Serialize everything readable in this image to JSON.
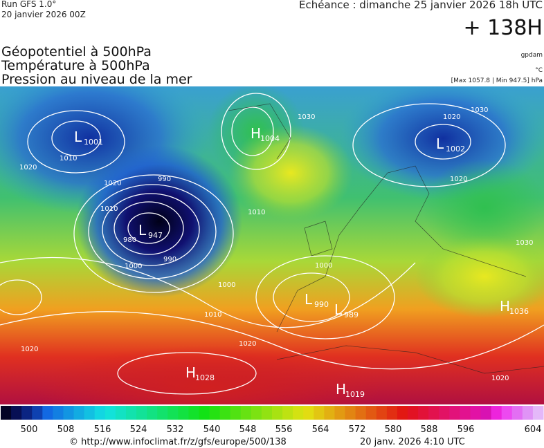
{
  "header": {
    "run": "Run GFS 1.0°",
    "run_date": "20 janvier 2026 00Z",
    "echeance": "Echéance : dimanche 25 janvier 2026 18h UTC",
    "lead": "+ 138H",
    "fields": [
      "Géopotentiel à 500hPa",
      "Température à 500hPa",
      "Pression au niveau de la mer"
    ],
    "unit_geo": "gpdam",
    "unit_temp": "°C",
    "pressure_range": "[Max 1057.8 | Min 947.5] hPa"
  },
  "map": {
    "centers": [
      {
        "letter": "L",
        "value": 1001
      },
      {
        "letter": "H",
        "value": 1004
      },
      {
        "letter": "L",
        "value": 1002
      },
      {
        "letter": "L",
        "value": 947
      },
      {
        "letter": "L",
        "value": 990
      },
      {
        "letter": "L",
        "value": 989
      },
      {
        "letter": "H",
        "value": 1036
      },
      {
        "letter": "H",
        "value": 1028
      },
      {
        "letter": "H",
        "value": 1019
      }
    ],
    "isobar_labels": [
      1020,
      1010,
      1020,
      990,
      980,
      1000,
      990,
      1010,
      1030,
      1020,
      1030,
      1020,
      1030,
      1000,
      1010,
      1020,
      1020,
      1020,
      1000,
      1010
    ]
  },
  "colorbar": {
    "ticks": [
      500,
      508,
      516,
      524,
      532,
      540,
      548,
      556,
      564,
      572,
      580,
      588,
      596,
      604
    ]
  },
  "footer": {
    "source": "© http://www.infoclimat.fr/z/gfs/europe/500/138",
    "generated": "20 janv. 2026  4:10 UTC"
  }
}
